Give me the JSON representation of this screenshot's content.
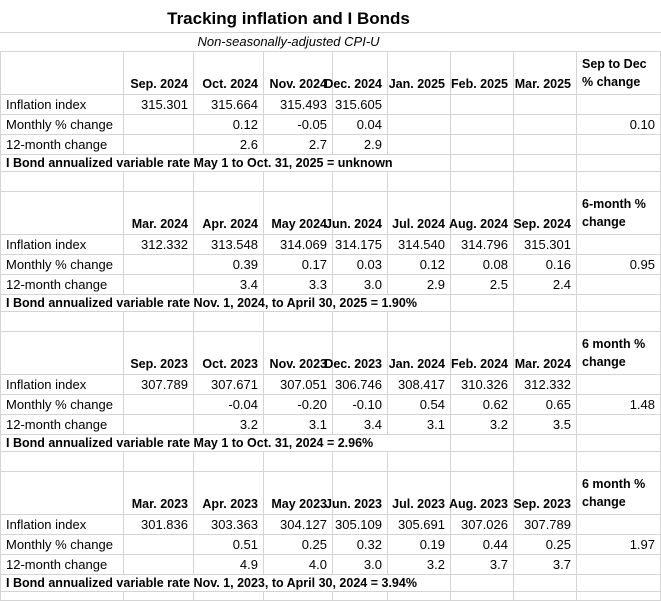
{
  "title": "Tracking inflation and I Bonds",
  "subtitle": "Non-seasonally-adjusted CPI-U",
  "row_labels": {
    "inflation": "Inflation index",
    "monthly": "Monthly % change",
    "twelve": "12-month change"
  },
  "colors": {
    "gridline": "#d4d4d4",
    "text": "#000000",
    "background": "#ffffff"
  },
  "sections": [
    {
      "months": [
        "Sep. 2024",
        "Oct. 2024",
        "Nov. 2024",
        "Dec. 2024",
        "Jan. 2025",
        "Feb. 2025",
        "Mar. 2025"
      ],
      "change_header": "Sep to Dec\n% change",
      "inflation": [
        "315.301",
        "315.664",
        "315.493",
        "315.605",
        "",
        "",
        "",
        ""
      ],
      "monthly": [
        "",
        "0.12",
        "-0.05",
        "0.04",
        "",
        "",
        "",
        "0.10"
      ],
      "twelve": [
        "",
        "2.6",
        "2.7",
        "2.9",
        "",
        "",
        "",
        ""
      ],
      "footer": "I Bond annualized variable rate May 1 to Oct. 31, 2025 = unknown"
    },
    {
      "months": [
        "Mar. 2024",
        "Apr. 2024",
        "May 2024",
        "Jun. 2024",
        "Jul. 2024",
        "Aug. 2024",
        "Sep. 2024"
      ],
      "change_header": "6-month %\nchange",
      "inflation": [
        "312.332",
        "313.548",
        "314.069",
        "314.175",
        "314.540",
        "314.796",
        "315.301",
        ""
      ],
      "monthly": [
        "",
        "0.39",
        "0.17",
        "0.03",
        "0.12",
        "0.08",
        "0.16",
        "0.95"
      ],
      "twelve": [
        "",
        "3.4",
        "3.3",
        "3.0",
        "2.9",
        "2.5",
        "2.4",
        ""
      ],
      "footer": "I Bond annualized variable rate Nov. 1, 2024, to April 30, 2025 = 1.90%"
    },
    {
      "months": [
        "Sep. 2023",
        "Oct. 2023",
        "Nov. 2023",
        "Dec. 2023",
        "Jan. 2024",
        "Feb. 2024",
        "Mar. 2024"
      ],
      "change_header": "6 month %\nchange",
      "inflation": [
        "307.789",
        "307.671",
        "307.051",
        "306.746",
        "308.417",
        "310.326",
        "312.332",
        ""
      ],
      "monthly": [
        "",
        "-0.04",
        "-0.20",
        "-0.10",
        "0.54",
        "0.62",
        "0.65",
        "1.48"
      ],
      "twelve": [
        "",
        "3.2",
        "3.1",
        "3.4",
        "3.1",
        "3.2",
        "3.5",
        ""
      ],
      "footer": "I Bond annualized variable rate May 1 to Oct. 31, 2024 = 2.96%"
    },
    {
      "months": [
        "Mar. 2023",
        "Apr. 2023",
        "May 2023",
        "Jun. 2023",
        "Jul. 2023",
        "Aug. 2023",
        "Sep. 2023"
      ],
      "change_header": "6 month %\nchange",
      "inflation": [
        "301.836",
        "303.363",
        "304.127",
        "305.109",
        "305.691",
        "307.026",
        "307.789",
        ""
      ],
      "monthly": [
        "",
        "0.51",
        "0.25",
        "0.32",
        "0.19",
        "0.44",
        "0.25",
        "1.97"
      ],
      "twelve": [
        "",
        "4.9",
        "4.0",
        "3.0",
        "3.2",
        "3.7",
        "3.7",
        ""
      ],
      "footer": "I Bond annualized variable rate Nov. 1, 2023, to April 30, 2024 = 3.94%"
    }
  ]
}
